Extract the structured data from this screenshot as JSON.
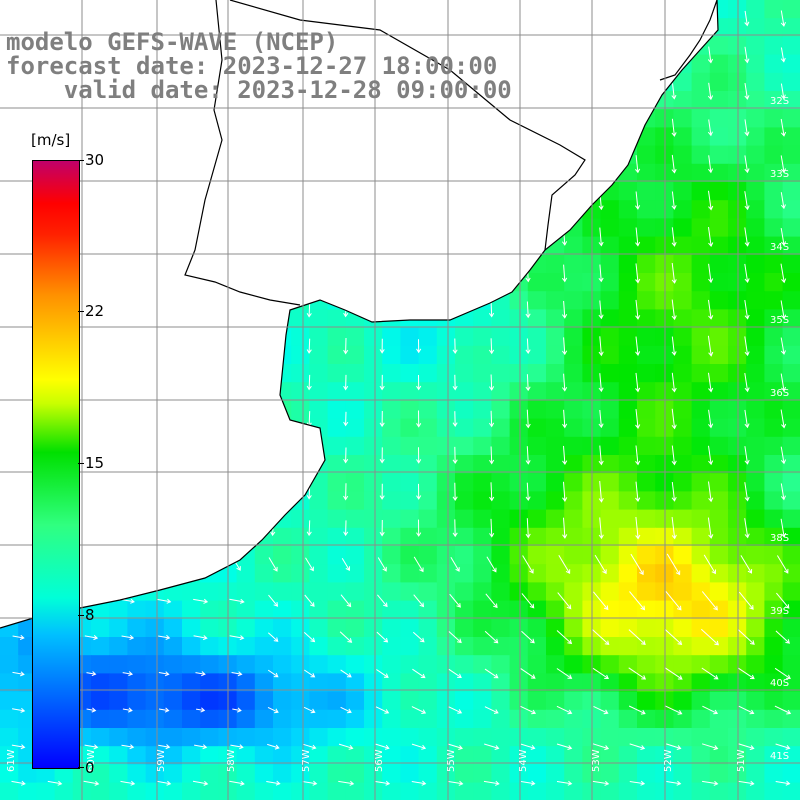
{
  "title": {
    "line1": "modelo GEFS-WAVE (NCEP)",
    "line2": "forecast date: 2023-12-27 18:00:00",
    "line3": "    valid date: 2023-12-28 09:00:00"
  },
  "legend": {
    "unit": "[m/s]",
    "ticks": [
      "30",
      "22",
      "15",
      "8",
      "0"
    ],
    "min": 0,
    "max": 30
  },
  "grid": {
    "lat_labels": [
      "32S",
      "33S",
      "34S",
      "35S",
      "36S",
      "37S",
      "38S",
      "39S",
      "40S",
      "41S"
    ],
    "lon_labels": [
      "61W",
      "60W",
      "59W",
      "58W",
      "57W",
      "56W",
      "55W",
      "54W",
      "53W",
      "52W",
      "51W"
    ]
  },
  "colors": {
    "land": "#ffffff",
    "coast": "#000000",
    "grid": "#8c8c8c",
    "arrows": "#ffffff",
    "title": "#7f7f7f"
  },
  "field": {
    "variable": "wind speed",
    "units": "m/s",
    "range": [
      0,
      30
    ],
    "arrow_direction": "NE wind (arrows pointing SW-S in north, E in south)"
  }
}
